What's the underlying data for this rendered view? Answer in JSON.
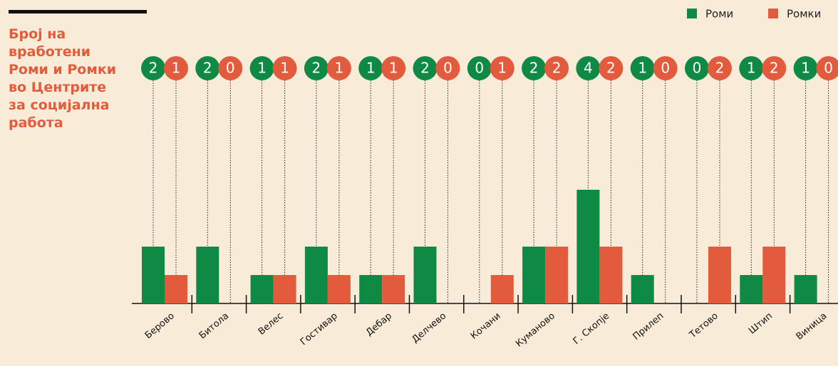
{
  "chart_data": {
    "type": "bar",
    "title": "Број на вработени Роми и Ромки во Центрите за социјална работа",
    "categories": [
      "Берово",
      "Битола",
      "Велес",
      "Гостивар",
      "Дебар",
      "Делчево",
      "Кочани",
      "Куманово",
      "Г. Скопје",
      "Прилеп",
      "Тетово",
      "Штип",
      "Виница"
    ],
    "series": [
      {
        "name": "Роми",
        "color": "#0e8a44",
        "values": [
          2,
          2,
          1,
          2,
          1,
          2,
          0,
          2,
          4,
          1,
          0,
          1,
          1
        ]
      },
      {
        "name": "Ромки",
        "color": "#e25b3d",
        "values": [
          1,
          0,
          1,
          1,
          1,
          0,
          1,
          2,
          2,
          0,
          2,
          2,
          0
        ]
      }
    ],
    "ylim": [
      0,
      4
    ],
    "legend": "top-right"
  }
}
